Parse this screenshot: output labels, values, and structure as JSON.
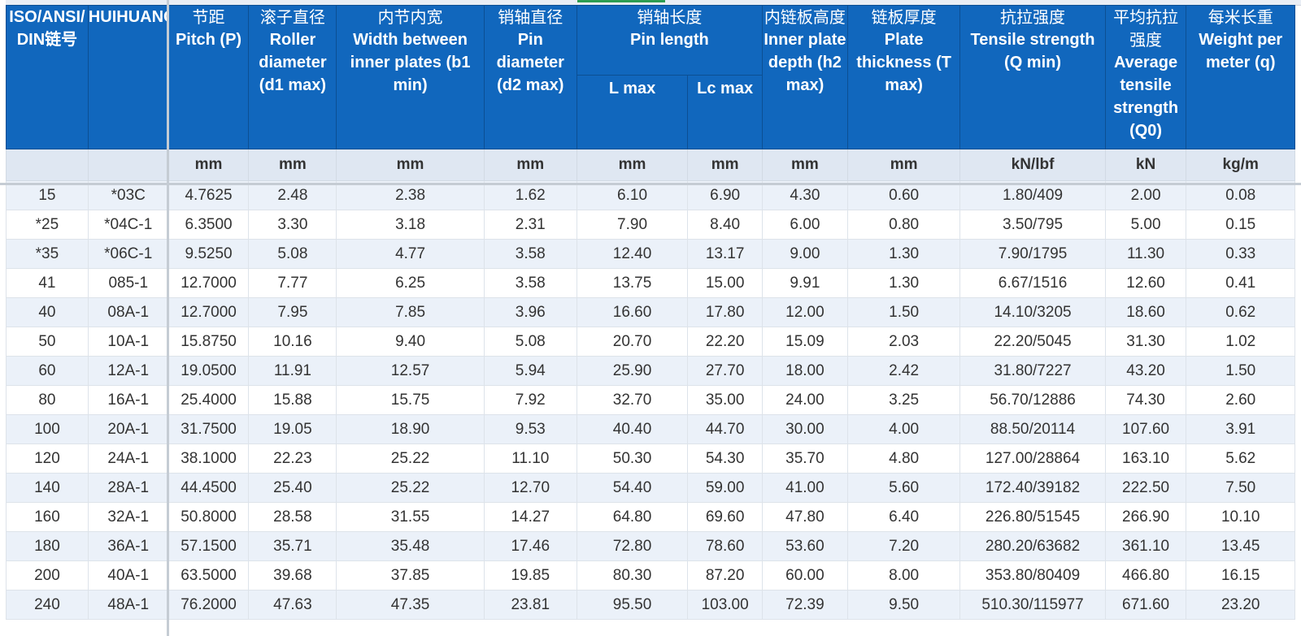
{
  "columns": [
    {
      "zh": "",
      "en": "ISO/ANSI/ DIN链号"
    },
    {
      "zh": "",
      "en": "HUIHUANG"
    },
    {
      "zh": "节距",
      "en": "Pitch (P)"
    },
    {
      "zh": "滚子直径",
      "en": "Roller diameter (d1 max)"
    },
    {
      "zh": "内节内宽",
      "en": "Width between inner plates (b1 min)"
    },
    {
      "zh": "销轴直径",
      "en": "Pin diameter (d2 max)"
    },
    {
      "zh": "销轴长度",
      "en": "Pin length"
    },
    {
      "zh": "内链板高度",
      "en": "Inner plate depth (h2 max)"
    },
    {
      "zh": "链板厚度",
      "en": "Plate thickness (T max)"
    },
    {
      "zh": "抗拉强度",
      "en": "Tensile strength (Q min)"
    },
    {
      "zh": "平均抗拉强度",
      "en": "Average tensile strength (Q0)"
    },
    {
      "zh": "每米长重",
      "en": "Weight per meter (q)"
    }
  ],
  "pin_length_sub": [
    "L max",
    "Lc max"
  ],
  "units": [
    "",
    "",
    "mm",
    "mm",
    "mm",
    "mm",
    "mm",
    "mm",
    "mm",
    "mm",
    "kN/lbf",
    "kN",
    "kg/m"
  ],
  "rows": [
    [
      "15",
      "*03C",
      "4.7625",
      "2.48",
      "2.38",
      "1.62",
      "6.10",
      "6.90",
      "4.30",
      "0.60",
      "1.80/409",
      "2.00",
      "0.08"
    ],
    [
      "*25",
      "*04C-1",
      "6.3500",
      "3.30",
      "3.18",
      "2.31",
      "7.90",
      "8.40",
      "6.00",
      "0.80",
      "3.50/795",
      "5.00",
      "0.15"
    ],
    [
      "*35",
      "*06C-1",
      "9.5250",
      "5.08",
      "4.77",
      "3.58",
      "12.40",
      "13.17",
      "9.00",
      "1.30",
      "7.90/1795",
      "11.30",
      "0.33"
    ],
    [
      "41",
      "085-1",
      "12.7000",
      "7.77",
      "6.25",
      "3.58",
      "13.75",
      "15.00",
      "9.91",
      "1.30",
      "6.67/1516",
      "12.60",
      "0.41"
    ],
    [
      "40",
      "08A-1",
      "12.7000",
      "7.95",
      "7.85",
      "3.96",
      "16.60",
      "17.80",
      "12.00",
      "1.50",
      "14.10/3205",
      "18.60",
      "0.62"
    ],
    [
      "50",
      "10A-1",
      "15.8750",
      "10.16",
      "9.40",
      "5.08",
      "20.70",
      "22.20",
      "15.09",
      "2.03",
      "22.20/5045",
      "31.30",
      "1.02"
    ],
    [
      "60",
      "12A-1",
      "19.0500",
      "11.91",
      "12.57",
      "5.94",
      "25.90",
      "27.70",
      "18.00",
      "2.42",
      "31.80/7227",
      "43.20",
      "1.50"
    ],
    [
      "80",
      "16A-1",
      "25.4000",
      "15.88",
      "15.75",
      "7.92",
      "32.70",
      "35.00",
      "24.00",
      "3.25",
      "56.70/12886",
      "74.30",
      "2.60"
    ],
    [
      "100",
      "20A-1",
      "31.7500",
      "19.05",
      "18.90",
      "9.53",
      "40.40",
      "44.70",
      "30.00",
      "4.00",
      "88.50/20114",
      "107.60",
      "3.91"
    ],
    [
      "120",
      "24A-1",
      "38.1000",
      "22.23",
      "25.22",
      "11.10",
      "50.30",
      "54.30",
      "35.70",
      "4.80",
      "127.00/28864",
      "163.10",
      "5.62"
    ],
    [
      "140",
      "28A-1",
      "44.4500",
      "25.40",
      "25.22",
      "12.70",
      "54.40",
      "59.00",
      "41.00",
      "5.60",
      "172.40/39182",
      "222.50",
      "7.50"
    ],
    [
      "160",
      "32A-1",
      "50.8000",
      "28.58",
      "31.55",
      "14.27",
      "64.80",
      "69.60",
      "47.80",
      "6.40",
      "226.80/51545",
      "266.90",
      "10.10"
    ],
    [
      "180",
      "36A-1",
      "57.1500",
      "35.71",
      "35.48",
      "17.46",
      "72.80",
      "78.60",
      "53.60",
      "7.20",
      "280.20/63682",
      "361.10",
      "13.45"
    ],
    [
      "200",
      "40A-1",
      "63.5000",
      "39.68",
      "37.85",
      "19.85",
      "80.30",
      "87.20",
      "60.00",
      "8.00",
      "353.80/80409",
      "466.80",
      "16.15"
    ],
    [
      "240",
      "48A-1",
      "76.2000",
      "47.63",
      "47.35",
      "23.81",
      "95.50",
      "103.00",
      "72.39",
      "9.50",
      "510.30/115977",
      "671.60",
      "23.20"
    ]
  ],
  "colors": {
    "header_bg": "#1167bd",
    "header_text": "#ffffff",
    "units_bg": "#dfe7f2",
    "stripe_bg": "#ebf1f9",
    "frozen_line": "#c5ccd4"
  }
}
